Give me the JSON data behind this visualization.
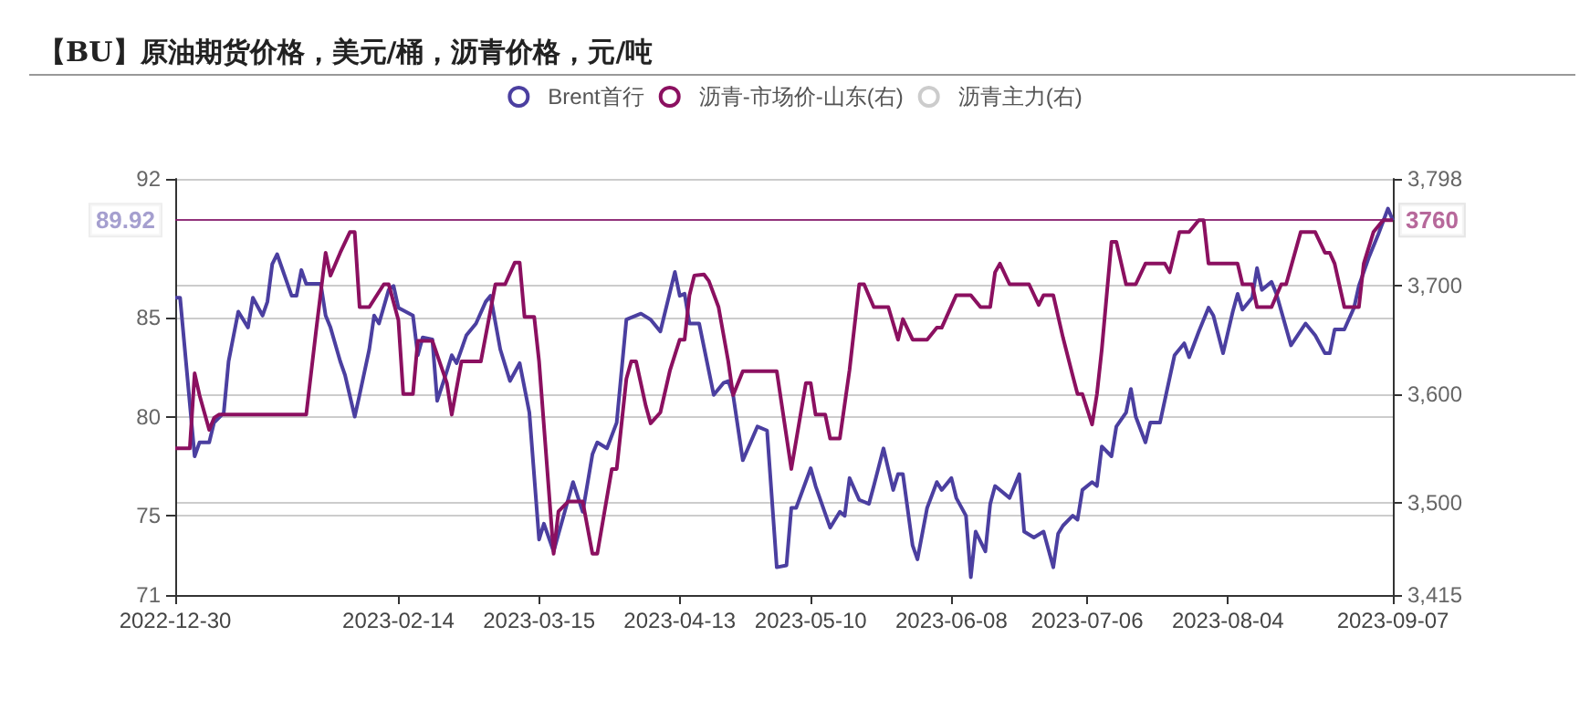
{
  "chart_data": {
    "type": "line",
    "title": "【BU】原油期货价格，美元/桶，沥青价格，元/吨",
    "xlim": [
      "2022-12-30",
      "2023-09-07"
    ],
    "xticks": [
      "2022-12-30",
      "2023-02-14",
      "2023-03-15",
      "2023-04-13",
      "2023-05-10",
      "2023-06-08",
      "2023-07-06",
      "2023-08-04",
      "2023-09-07"
    ],
    "ylim": [
      71,
      92
    ],
    "yticks": [
      71,
      75,
      80,
      85,
      92
    ],
    "y2lim": [
      3415,
      3798
    ],
    "y2ticks": [
      {
        "value": 3415,
        "label": "3,415"
      },
      {
        "value": 3500,
        "label": "3,500"
      },
      {
        "value": 3600,
        "label": "3,600"
      },
      {
        "value": 3700,
        "label": "3,700"
      },
      {
        "value": 3798,
        "label": "3,798"
      }
    ],
    "grid": "y",
    "legend": "top",
    "line_style": "solid",
    "ref_lines": [
      {
        "axis": "y",
        "value": 89.92,
        "label": "89.92",
        "color": "#4b3fa0"
      },
      {
        "axis": "y2",
        "value": 3760,
        "label": "3760",
        "color": "#8b1060"
      }
    ],
    "series": [
      {
        "name": "Brent首行",
        "color": "#4b3fa0",
        "axis": "y",
        "x": [
          "2022-12-30",
          "2022-12-31",
          "2023-01-03",
          "2023-01-04",
          "2023-01-06",
          "2023-01-07",
          "2023-01-09",
          "2023-01-10",
          "2023-01-12",
          "2023-01-14",
          "2023-01-15",
          "2023-01-17",
          "2023-01-18",
          "2023-01-19",
          "2023-01-20",
          "2023-01-23",
          "2023-01-24",
          "2023-01-25",
          "2023-01-26",
          "2023-01-29",
          "2023-01-30",
          "2023-01-31",
          "2023-02-02",
          "2023-02-03",
          "2023-02-05",
          "2023-02-06",
          "2023-02-08",
          "2023-02-09",
          "2023-02-10",
          "2023-02-12",
          "2023-02-13",
          "2023-02-14",
          "2023-02-17",
          "2023-02-18",
          "2023-02-19",
          "2023-02-21",
          "2023-02-22",
          "2023-02-24",
          "2023-02-25",
          "2023-02-26",
          "2023-02-28",
          "2023-03-02",
          "2023-03-04",
          "2023-03-05",
          "2023-03-07",
          "2023-03-09",
          "2023-03-11",
          "2023-03-13",
          "2023-03-15",
          "2023-03-16",
          "2023-03-18",
          "2023-03-22",
          "2023-03-24",
          "2023-03-26",
          "2023-03-27",
          "2023-03-29",
          "2023-03-31",
          "2023-04-02",
          "2023-04-05",
          "2023-04-07",
          "2023-04-09",
          "2023-04-12",
          "2023-04-13",
          "2023-04-14",
          "2023-04-15",
          "2023-04-17",
          "2023-04-20",
          "2023-04-22",
          "2023-04-23",
          "2023-04-24",
          "2023-04-26",
          "2023-04-29",
          "2023-05-01",
          "2023-05-03",
          "2023-05-05",
          "2023-05-06",
          "2023-05-07",
          "2023-05-10",
          "2023-05-11",
          "2023-05-14",
          "2023-05-16",
          "2023-05-17",
          "2023-05-18",
          "2023-05-20",
          "2023-05-22",
          "2023-05-23",
          "2023-05-25",
          "2023-05-27",
          "2023-05-28",
          "2023-05-29",
          "2023-05-31",
          "2023-06-01",
          "2023-06-03",
          "2023-06-05",
          "2023-06-06",
          "2023-06-08",
          "2023-06-09",
          "2023-06-11",
          "2023-06-12",
          "2023-06-13",
          "2023-06-15",
          "2023-06-16",
          "2023-06-17",
          "2023-06-20",
          "2023-06-22",
          "2023-06-23",
          "2023-06-25",
          "2023-06-27",
          "2023-06-29",
          "2023-06-30",
          "2023-07-01",
          "2023-07-03",
          "2023-07-04",
          "2023-07-05",
          "2023-07-07",
          "2023-07-08",
          "2023-07-09",
          "2023-07-11",
          "2023-07-12",
          "2023-07-14",
          "2023-07-15",
          "2023-07-16",
          "2023-07-18",
          "2023-07-19",
          "2023-07-21",
          "2023-07-24",
          "2023-07-26",
          "2023-07-27",
          "2023-07-29",
          "2023-07-31",
          "2023-08-01",
          "2023-08-03",
          "2023-08-05",
          "2023-08-06",
          "2023-08-07",
          "2023-08-09",
          "2023-08-10",
          "2023-08-11",
          "2023-08-13",
          "2023-08-14",
          "2023-08-17",
          "2023-08-20",
          "2023-08-22",
          "2023-08-24",
          "2023-08-25",
          "2023-08-26",
          "2023-08-28",
          "2023-08-30",
          "2023-08-31",
          "2023-09-02",
          "2023-09-04",
          "2023-09-06",
          "2023-09-07"
        ],
        "values": [
          86.0,
          86.0,
          78.0,
          78.7,
          78.7,
          79.7,
          80.2,
          82.8,
          85.3,
          84.5,
          86.0,
          85.1,
          85.8,
          87.7,
          88.2,
          86.1,
          86.1,
          87.4,
          86.7,
          86.7,
          85.1,
          84.5,
          82.8,
          82.1,
          80.0,
          81.1,
          83.4,
          85.1,
          84.7,
          86.4,
          86.6,
          85.5,
          85.1,
          83.1,
          84.0,
          83.9,
          80.8,
          82.3,
          83.1,
          82.7,
          84.1,
          84.7,
          85.8,
          86.1,
          83.4,
          81.8,
          82.7,
          80.2,
          73.8,
          74.6,
          73.2,
          76.7,
          75.2,
          78.1,
          78.7,
          78.4,
          79.7,
          84.9,
          85.2,
          84.9,
          84.3,
          87.3,
          86.1,
          86.2,
          84.7,
          84.7,
          81.1,
          81.7,
          81.8,
          81.1,
          77.8,
          79.5,
          79.3,
          72.4,
          72.5,
          75.4,
          75.4,
          77.4,
          76.5,
          74.4,
          75.2,
          75.0,
          76.9,
          75.8,
          75.6,
          76.5,
          78.4,
          76.3,
          77.1,
          77.1,
          73.5,
          72.8,
          75.4,
          76.7,
          76.3,
          76.9,
          75.9,
          75.0,
          71.9,
          74.2,
          73.2,
          75.6,
          76.5,
          75.9,
          77.1,
          74.2,
          73.9,
          74.2,
          72.4,
          74.1,
          74.5,
          75.0,
          74.8,
          76.3,
          76.7,
          76.5,
          78.5,
          78.0,
          79.5,
          80.2,
          81.4,
          80.0,
          78.7,
          79.7,
          79.7,
          83.1,
          83.7,
          83.0,
          84.3,
          85.5,
          85.1,
          83.2,
          85.3,
          86.2,
          85.4,
          86.0,
          87.5,
          86.4,
          86.8,
          86.2,
          83.6,
          84.7,
          84.1,
          83.2,
          83.2,
          84.4,
          84.4,
          85.5,
          86.6,
          88.0,
          89.2,
          90.5,
          89.9
        ]
      },
      {
        "name": "沥青-市场价-山东(右)",
        "color": "#8b1060",
        "axis": "y2",
        "x": [
          "2022-12-30",
          "2023-01-02",
          "2023-01-03",
          "2023-01-04",
          "2023-01-06",
          "2023-01-07",
          "2023-01-08",
          "2023-01-26",
          "2023-01-28",
          "2023-01-30",
          "2023-01-31",
          "2023-02-02",
          "2023-02-04",
          "2023-02-05",
          "2023-02-06",
          "2023-02-08",
          "2023-02-11",
          "2023-02-12",
          "2023-02-14",
          "2023-02-15",
          "2023-02-17",
          "2023-02-18",
          "2023-02-21",
          "2023-02-24",
          "2023-02-25",
          "2023-02-27",
          "2023-03-03",
          "2023-03-06",
          "2023-03-08",
          "2023-03-10",
          "2023-03-11",
          "2023-03-12",
          "2023-03-14",
          "2023-03-15",
          "2023-03-18",
          "2023-03-19",
          "2023-03-21",
          "2023-03-24",
          "2023-03-26",
          "2023-03-27",
          "2023-03-30",
          "2023-03-31",
          "2023-04-02",
          "2023-04-03",
          "2023-04-04",
          "2023-04-06",
          "2023-04-07",
          "2023-04-09",
          "2023-04-11",
          "2023-04-13",
          "2023-04-14",
          "2023-04-15",
          "2023-04-16",
          "2023-04-18",
          "2023-04-19",
          "2023-04-21",
          "2023-04-23",
          "2023-04-24",
          "2023-04-26",
          "2023-05-03",
          "2023-05-06",
          "2023-05-09",
          "2023-05-10",
          "2023-05-11",
          "2023-05-13",
          "2023-05-14",
          "2023-05-16",
          "2023-05-18",
          "2023-05-20",
          "2023-05-21",
          "2023-05-23",
          "2023-05-26",
          "2023-05-28",
          "2023-05-29",
          "2023-05-31",
          "2023-06-03",
          "2023-06-05",
          "2023-06-06",
          "2023-06-09",
          "2023-06-12",
          "2023-06-14",
          "2023-06-16",
          "2023-06-17",
          "2023-06-18",
          "2023-06-20",
          "2023-06-24",
          "2023-06-26",
          "2023-06-27",
          "2023-06-29",
          "2023-07-01",
          "2023-07-03",
          "2023-07-04",
          "2023-07-05",
          "2023-07-07",
          "2023-07-08",
          "2023-07-09",
          "2023-07-11",
          "2023-07-12",
          "2023-07-14",
          "2023-07-16",
          "2023-07-18",
          "2023-07-22",
          "2023-07-23",
          "2023-07-25",
          "2023-07-27",
          "2023-07-29",
          "2023-07-30",
          "2023-07-31",
          "2023-08-06",
          "2023-08-07",
          "2023-08-09",
          "2023-08-10",
          "2023-08-13",
          "2023-08-15",
          "2023-08-16",
          "2023-08-19",
          "2023-08-22",
          "2023-08-24",
          "2023-08-25",
          "2023-08-26",
          "2023-08-28",
          "2023-08-31",
          "2023-09-01",
          "2023-09-03",
          "2023-09-05",
          "2023-09-07"
        ],
        "values": [
          3550,
          3550,
          3619,
          3599,
          3567,
          3578,
          3581,
          3581,
          3657,
          3730,
          3709,
          3730,
          3749,
          3749,
          3680,
          3680,
          3701,
          3701,
          3668,
          3600,
          3600,
          3649,
          3649,
          3610,
          3581,
          3630,
          3630,
          3701,
          3701,
          3721,
          3721,
          3671,
          3671,
          3630,
          3453,
          3492,
          3501,
          3501,
          3453,
          3453,
          3531,
          3531,
          3614,
          3630,
          3630,
          3589,
          3573,
          3583,
          3622,
          3650,
          3650,
          3691,
          3709,
          3710,
          3704,
          3680,
          3630,
          3599,
          3621,
          3621,
          3531,
          3610,
          3610,
          3581,
          3581,
          3559,
          3559,
          3622,
          3701,
          3701,
          3680,
          3680,
          3650,
          3669,
          3650,
          3650,
          3661,
          3661,
          3691,
          3691,
          3680,
          3680,
          3712,
          3720,
          3701,
          3701,
          3682,
          3691,
          3691,
          3652,
          3617,
          3600,
          3600,
          3572,
          3600,
          3641,
          3740,
          3740,
          3701,
          3701,
          3720,
          3720,
          3712,
          3749,
          3749,
          3760,
          3760,
          3720,
          3720,
          3701,
          3701,
          3680,
          3680,
          3701,
          3701,
          3749,
          3749,
          3730,
          3730,
          3720,
          3680,
          3680,
          3720,
          3749,
          3760,
          3760
        ]
      },
      {
        "name": "沥青主力(右)",
        "color": "#cccccc",
        "axis": "y2"
      }
    ]
  }
}
